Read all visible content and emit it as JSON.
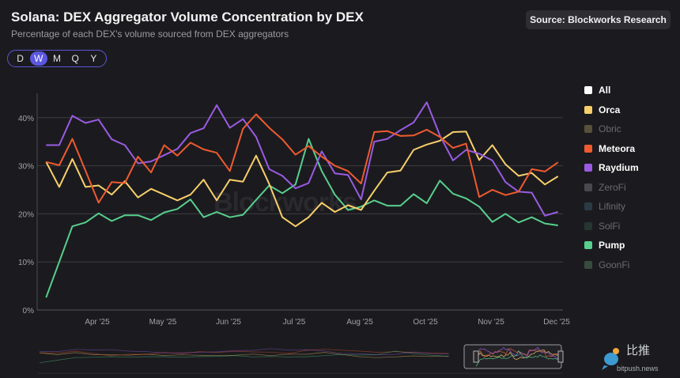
{
  "header": {
    "title": "Solana: DEX Aggregator Volume Concentration by DEX",
    "subtitle": "Percentage of each DEX's volume sourced from DEX aggregators",
    "source_label": "Source: Blockworks Research"
  },
  "periods": [
    {
      "label": "D",
      "active": false
    },
    {
      "label": "W",
      "active": true
    },
    {
      "label": "M",
      "active": false
    },
    {
      "label": "Q",
      "active": false
    },
    {
      "label": "Y",
      "active": false
    }
  ],
  "watermark": "Blockworks",
  "branding": {
    "cn": "比推",
    "en": "bitpush.news"
  },
  "legend": [
    {
      "label": "All",
      "color": "#ffffff",
      "visible": true
    },
    {
      "label": "Orca",
      "color": "#f7cf6a",
      "visible": true
    },
    {
      "label": "Obric",
      "color": "#57503a",
      "visible": false
    },
    {
      "label": "Meteora",
      "color": "#ef5a2f",
      "visible": true
    },
    {
      "label": "Raydium",
      "color": "#9a5be2",
      "visible": true
    },
    {
      "label": "ZeroFi",
      "color": "#4a474f",
      "visible": false
    },
    {
      "label": "Lifinity",
      "color": "#2b3b45",
      "visible": false
    },
    {
      "label": "SolFi",
      "color": "#263630",
      "visible": false
    },
    {
      "label": "Pump",
      "color": "#58cf8e",
      "visible": true
    },
    {
      "label": "GoonFi",
      "color": "#384c3d",
      "visible": false
    }
  ],
  "chart_data": {
    "type": "line",
    "title": "Solana: DEX Aggregator Volume Concentration by DEX",
    "subtitle": "Percentage of each DEX's volume sourced from DEX aggregators",
    "x_frequency": "weekly",
    "x_tick_labels": [
      "Apr '25",
      "May '25",
      "Jun '25",
      "Jul '25",
      "Aug '25",
      "Oct '25",
      "Nov '25",
      "Dec '25"
    ],
    "y_tick_labels": [
      "0%",
      "10%",
      "20%",
      "30%",
      "40%"
    ],
    "ylim": [
      0,
      45
    ],
    "grid": true,
    "legend_position": "right",
    "series": [
      {
        "name": "Orca",
        "color": "#f7cf6a",
        "values": [
          30.8,
          25.6,
          31.4,
          25.6,
          25.9,
          24.0,
          26.8,
          23.4,
          25.2,
          24.0,
          22.8,
          24.0,
          27.1,
          22.8,
          27.1,
          26.7,
          32.1,
          26.2,
          19.3,
          17.4,
          19.3,
          22.3,
          20.4,
          21.8,
          20.8,
          24.8,
          28.6,
          29.0,
          33.3,
          34.4,
          35.2,
          37.0,
          37.1,
          31.2,
          34.3,
          30.3,
          27.9,
          28.5,
          26.1,
          27.8
        ]
      },
      {
        "name": "Meteora",
        "color": "#ef5a2f",
        "values": [
          30.8,
          30.1,
          35.6,
          29.0,
          22.3,
          26.6,
          26.4,
          31.9,
          28.6,
          34.3,
          32.1,
          34.8,
          33.4,
          32.7,
          28.9,
          37.7,
          40.7,
          37.9,
          35.5,
          32.3,
          34.1,
          31.9,
          30.0,
          28.9,
          26.3,
          37.0,
          37.2,
          36.2,
          36.3,
          37.5,
          36.0,
          33.7,
          34.6,
          23.5,
          25.0,
          23.9,
          24.6,
          29.3,
          28.8,
          30.7
        ]
      },
      {
        "name": "Raydium",
        "color": "#9a5be2",
        "values": [
          34.3,
          34.3,
          40.4,
          38.9,
          39.6,
          35.5,
          34.3,
          30.5,
          30.9,
          32.2,
          33.5,
          36.8,
          37.8,
          42.6,
          37.9,
          39.7,
          36.0,
          29.3,
          27.9,
          25.3,
          26.4,
          33.0,
          28.4,
          28.1,
          23.0,
          35.0,
          35.6,
          37.4,
          39.0,
          43.2,
          36.3,
          31.1,
          33.3,
          32.5,
          31.1,
          26.6,
          24.6,
          24.4,
          19.6,
          20.4
        ]
      },
      {
        "name": "Pump",
        "color": "#58cf8e",
        "values": [
          2.6,
          10.0,
          17.4,
          18.2,
          20.1,
          18.5,
          19.7,
          19.7,
          18.7,
          20.3,
          21.0,
          23.0,
          19.3,
          20.4,
          19.3,
          19.8,
          22.9,
          25.9,
          24.3,
          26.1,
          35.6,
          28.9,
          24.0,
          20.8,
          21.5,
          22.8,
          21.7,
          21.7,
          24.1,
          22.2,
          26.9,
          24.2,
          23.2,
          21.5,
          18.3,
          20.0,
          18.2,
          19.3,
          18.0,
          17.6
        ]
      }
    ]
  }
}
